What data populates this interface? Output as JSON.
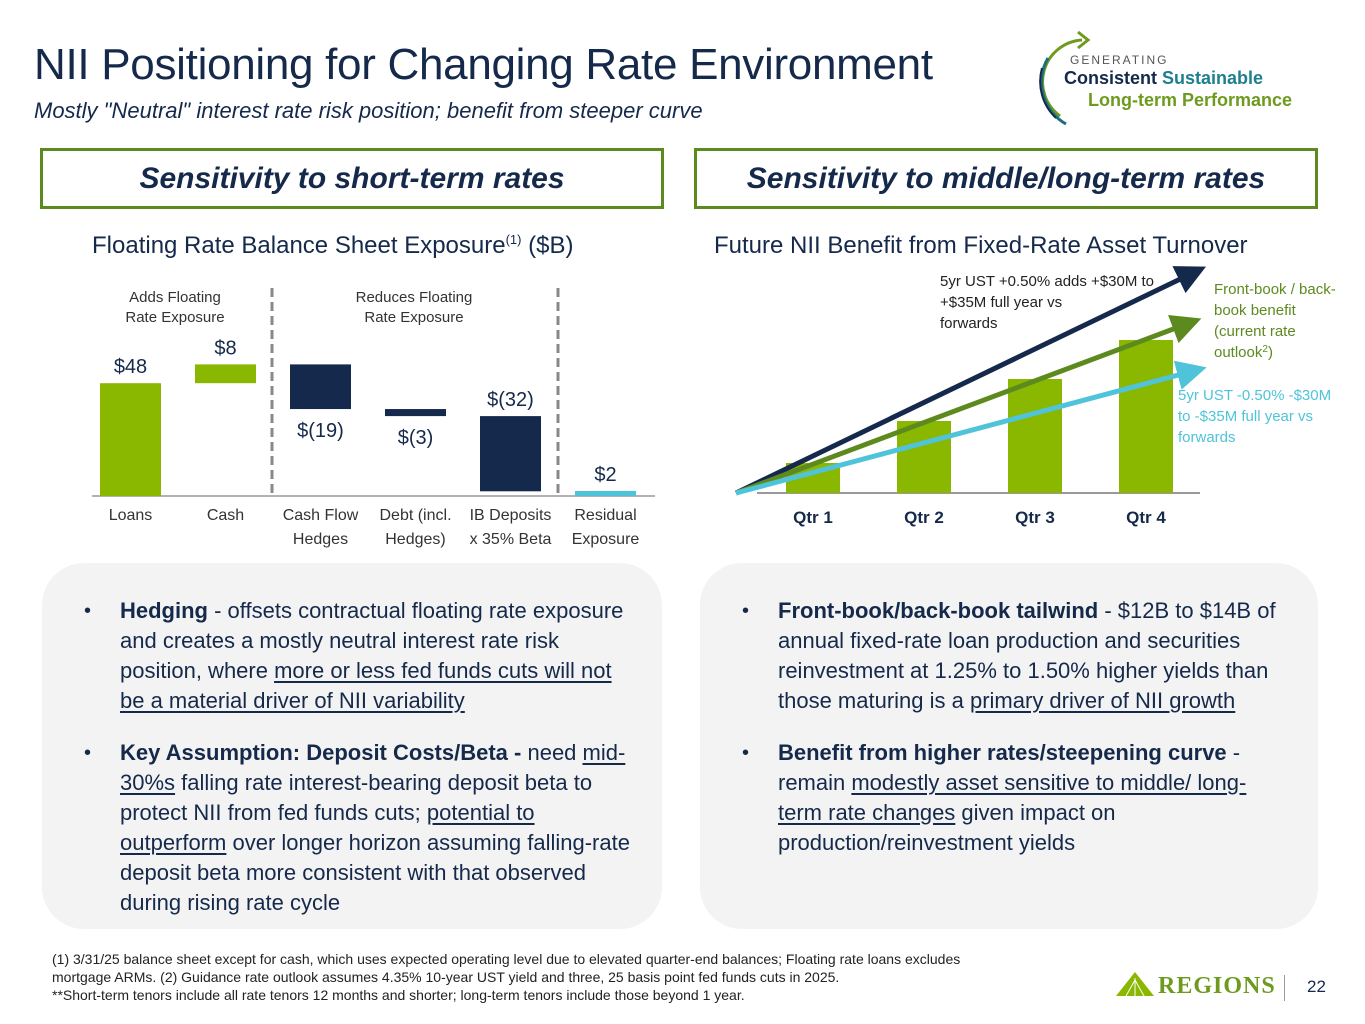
{
  "header": {
    "title": "NII Positioning for Changing Rate Environment",
    "subtitle": "Mostly \"Neutral\" interest rate risk position; benefit from steeper curve"
  },
  "logo": {
    "generating": "GENERATING",
    "consistent": "Consistent",
    "sustainable": "Sustainable",
    "long_term": "Long-term Performance"
  },
  "sections": {
    "left": "Sensitivity to short-term rates",
    "right": "Sensitivity to middle/long-term rates"
  },
  "colors": {
    "green": "#8ab800",
    "navy": "#14294c",
    "teal": "#4fc3d9",
    "dark_green": "#5d8a1f"
  },
  "chart_data": [
    {
      "type": "bar",
      "subtype": "waterfall",
      "title": "Floating Rate Balance Sheet Exposure",
      "title_sup": "(1)",
      "title_unit": "($B)",
      "group_labels": [
        {
          "text_line1": "Adds Floating",
          "text_line2": "Rate Exposure"
        },
        {
          "text_line1": "Reduces Floating",
          "text_line2": "Rate Exposure"
        }
      ],
      "categories": [
        {
          "line1": "Loans",
          "line2": ""
        },
        {
          "line1": "Cash",
          "line2": ""
        },
        {
          "line1": "Cash Flow",
          "line2": "Hedges"
        },
        {
          "line1": "Debt (incl.",
          "line2": "Hedges)"
        },
        {
          "line1": "IB Deposits",
          "line2": "x 35% Beta"
        },
        {
          "line1": "Residual",
          "line2": "Exposure"
        }
      ],
      "values": [
        48,
        8,
        -19,
        -3,
        -32,
        2
      ],
      "labels": [
        "$48",
        "$8",
        "$(19)",
        "$(3)",
        "$(32)",
        "$2"
      ],
      "kinds": [
        "total",
        "delta",
        "delta",
        "delta",
        "delta",
        "total"
      ],
      "bar_colors": [
        "#8ab800",
        "#8ab800",
        "#14294c",
        "#14294c",
        "#14294c",
        "#4fc3d9"
      ],
      "xlabel": "",
      "ylabel": "",
      "grid": false
    },
    {
      "type": "bar",
      "title": "Future NII Benefit from Fixed-Rate Asset Turnover",
      "categories": [
        "Qtr 1",
        "Qtr 2",
        "Qtr 3",
        "Qtr 4"
      ],
      "values_relative": [
        1.0,
        2.4,
        3.8,
        5.1
      ],
      "bar_color": "#8ab800",
      "arrows": [
        {
          "name": "5yr UST +0.50%",
          "relative_end": 7.4,
          "color": "#14294c",
          "annotation": [
            "5yr UST +0.50% adds +$30M to",
            "+$35M full year vs",
            "forwards"
          ]
        },
        {
          "name": "Front-book / back-book benefit",
          "relative_end": 5.7,
          "color": "#5d8a1f",
          "annotation": [
            "Front-book / back-",
            "book benefit",
            "(current rate",
            "outlook"
          ],
          "annotation_sup": "2",
          "annotation_tail": ")"
        },
        {
          "name": "5yr UST -0.50%",
          "relative_end": 4.1,
          "color": "#4fc3d9",
          "annotation": [
            "5yr UST -0.50% -$30M",
            "to -$35M full year vs",
            "forwards"
          ]
        }
      ],
      "xlabel": "",
      "ylabel": "",
      "grid": false
    }
  ],
  "bullets_left": [
    {
      "bold": "Hedging",
      "t1": " - offsets contractual floating rate exposure and creates a mostly neutral interest rate risk position, where ",
      "u1": "more or less fed funds cuts will not be a material driver of NII variability"
    },
    {
      "bold": "Key Assumption: Deposit Costs/Beta -",
      "t1": " need ",
      "u1": "mid-30%s",
      "t2": " falling rate interest-bearing deposit beta to protect NII from fed funds cuts; ",
      "u2": "potential to outperform",
      "t3": " over longer horizon assuming falling-rate deposit beta more consistent with that observed during rising rate cycle"
    }
  ],
  "bullets_right": [
    {
      "bold": "Front-book/back-book tailwind",
      "t1": " - $12B to $14B of annual fixed-rate loan production and securities reinvestment at 1.25% to 1.50% higher yields than those maturing is a ",
      "u1": "primary driver of NII growth"
    },
    {
      "bold": "Benefit from higher rates/steepening curve",
      "t1": " - remain ",
      "u1": "modestly asset sensitive to middle/ long-term rate changes",
      "t2": " given impact on production/reinvestment yields"
    }
  ],
  "footnotes": [
    " (1) 3/31/25 balance sheet except for cash, which uses expected operating level due to elevated quarter-end balances; Floating rate loans excludes",
    "mortgage ARMs.  (2) Guidance rate outlook assumes 4.35% 10-year UST yield and three, 25 basis point fed funds cuts in 2025.",
    " **Short-term tenors include all rate tenors 12 months and shorter; long-term tenors include those beyond 1 year."
  ],
  "footer": {
    "brand": "REGIONS",
    "page_number": "22"
  }
}
